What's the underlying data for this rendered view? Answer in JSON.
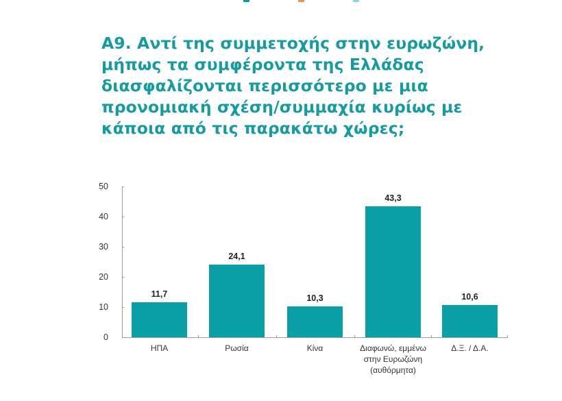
{
  "legend_fragment": {
    "note": "cropped legend at top edge",
    "swatches": [
      {
        "color": "#0a9ea6"
      },
      {
        "color": "#e8924a"
      },
      {
        "color": "#8fd3d6"
      }
    ]
  },
  "title": "Α9. Αντί της συμμετοχής στην ευρωζώνη,\nμήπως τα συμφέροντα της Ελλάδας\nδιασφαλίζονται περισσότερο με μια\nπρονομιακή σχέση/συμμαχία κυρίως με\nκάποια από τις παρακάτω χώρες;",
  "colors": {
    "title": "#169ba0",
    "bar": "#0a9ea6",
    "axis": "#9a9a9a"
  },
  "chart_data": {
    "type": "bar",
    "title": "Α9. Αντί της συμμετοχής στην ευρωζώνη, μήπως τα συμφέροντα της Ελλάδας διασφαλίζονται περισσότερο με μια προνομιακή σχέση/συμμαχία κυρίως με κάποια από τις παρακάτω χώρες;",
    "categories": [
      "ΗΠΑ",
      "Ρωσία",
      "Κίνα",
      "Διαφωνώ, εμμένω\nστην Ευρωζώνη\n(αυθόρμητα)",
      "Δ.Ξ. / Δ.Α."
    ],
    "values": [
      11.7,
      24.1,
      10.3,
      43.3,
      10.6
    ],
    "value_labels": [
      "11,7",
      "24,1",
      "10,3",
      "43,3",
      "10,6"
    ],
    "xlabel": "",
    "ylabel": "",
    "ylim": [
      0,
      50
    ],
    "yticks": [
      "0",
      "10",
      "20",
      "30",
      "40",
      "50"
    ],
    "grid": false,
    "legend": "none",
    "bar_color": "#0a9ea6"
  }
}
